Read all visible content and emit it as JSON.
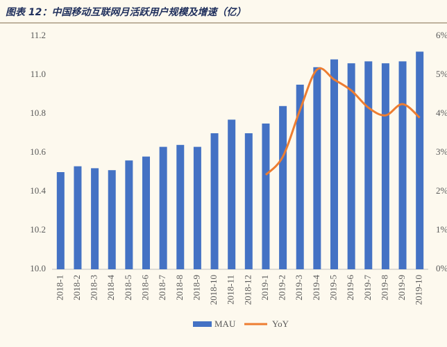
{
  "chart_data": {
    "type": "bar_line",
    "title": "图表 12：中国移动互联网月活跃用户规模及增速（亿）",
    "categories": [
      "2018-1",
      "2018-2",
      "2018-3",
      "2018-4",
      "2018-5",
      "2018-6",
      "2018-7",
      "2018-8",
      "2018-9",
      "2018-10",
      "2018-11",
      "2018-12",
      "2019-1",
      "2019-2",
      "2019-3",
      "2019-4",
      "2019-5",
      "2019-6",
      "2019-7",
      "2019-8",
      "2019-9",
      "2019-10"
    ],
    "series": [
      {
        "name": "MAU",
        "type": "bar",
        "color": "#4472c4",
        "axis": "y",
        "values": [
          10.5,
          10.53,
          10.52,
          10.51,
          10.56,
          10.58,
          10.63,
          10.64,
          10.63,
          10.7,
          10.77,
          10.7,
          10.75,
          10.84,
          10.95,
          11.04,
          11.08,
          11.06,
          11.07,
          11.06,
          11.07,
          11.12
        ]
      },
      {
        "name": "YoY",
        "type": "line",
        "color": "#ed7d31",
        "axis": "y2",
        "values": [
          null,
          null,
          null,
          null,
          null,
          null,
          null,
          null,
          null,
          null,
          null,
          null,
          2.43,
          2.9,
          4.1,
          5.14,
          4.88,
          4.6,
          4.16,
          3.96,
          4.25,
          3.9
        ]
      }
    ],
    "ylim": [
      10.0,
      11.2
    ],
    "yticks": [
      {
        "value": 10.0,
        "label": "10.0"
      },
      {
        "value": 10.2,
        "label": "10.2"
      },
      {
        "value": 10.4,
        "label": "10.4"
      },
      {
        "value": 10.6,
        "label": "10.6"
      },
      {
        "value": 10.8,
        "label": "10.8"
      },
      {
        "value": 11.0,
        "label": "11.0"
      },
      {
        "value": 11.2,
        "label": "11.2"
      }
    ],
    "y2lim": [
      0,
      6
    ],
    "y2ticks": [
      {
        "value": 0,
        "label": "0%"
      },
      {
        "value": 1,
        "label": "1%"
      },
      {
        "value": 2,
        "label": "2%"
      },
      {
        "value": 3,
        "label": "3%"
      },
      {
        "value": 4,
        "label": "4%"
      },
      {
        "value": 5,
        "label": "5%"
      },
      {
        "value": 6,
        "label": "6%"
      }
    ],
    "grid": false,
    "legend": "bottom"
  }
}
